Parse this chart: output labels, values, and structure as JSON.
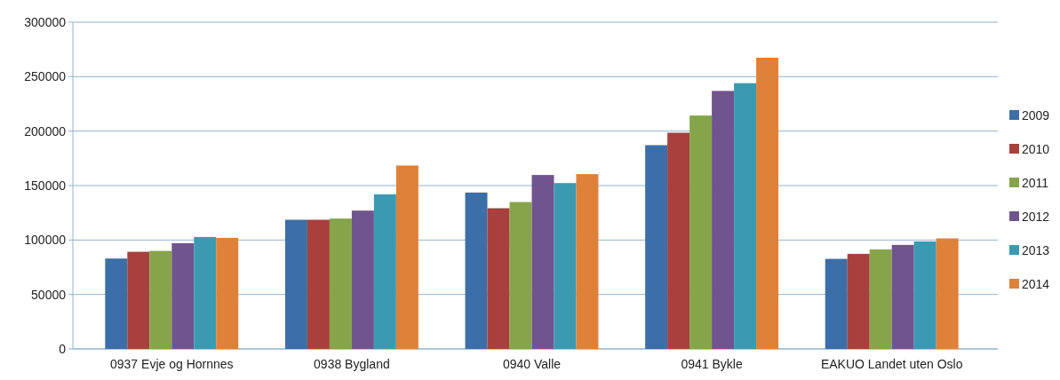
{
  "chart_data": {
    "type": "bar",
    "categories": [
      "0937 Evje og Hornnes",
      "0938 Bygland",
      "0940 Valle",
      "0941 Bykle",
      "EAKUO Landet uten Oslo"
    ],
    "series": [
      {
        "name": "2009",
        "color": "#3c6ea8",
        "values": [
          83000,
          118600,
          143600,
          187100,
          82700
        ]
      },
      {
        "name": "2010",
        "color": "#a8403d",
        "values": [
          89200,
          118600,
          129200,
          198500,
          87300
        ]
      },
      {
        "name": "2011",
        "color": "#86a54a",
        "values": [
          90000,
          119700,
          134900,
          214300,
          91400
        ]
      },
      {
        "name": "2012",
        "color": "#6f548f",
        "values": [
          97100,
          127000,
          159700,
          236900,
          95500
        ]
      },
      {
        "name": "2013",
        "color": "#3b9ab2",
        "values": [
          102800,
          142000,
          152300,
          244000,
          98700
        ]
      },
      {
        "name": "2014",
        "color": "#de8139",
        "values": [
          102000,
          168400,
          160500,
          267400,
          101500
        ]
      }
    ],
    "ylim": [
      0,
      300000
    ],
    "yticks": [
      0,
      50000,
      100000,
      150000,
      200000,
      250000,
      300000
    ],
    "grid": "y",
    "legend": "right"
  }
}
